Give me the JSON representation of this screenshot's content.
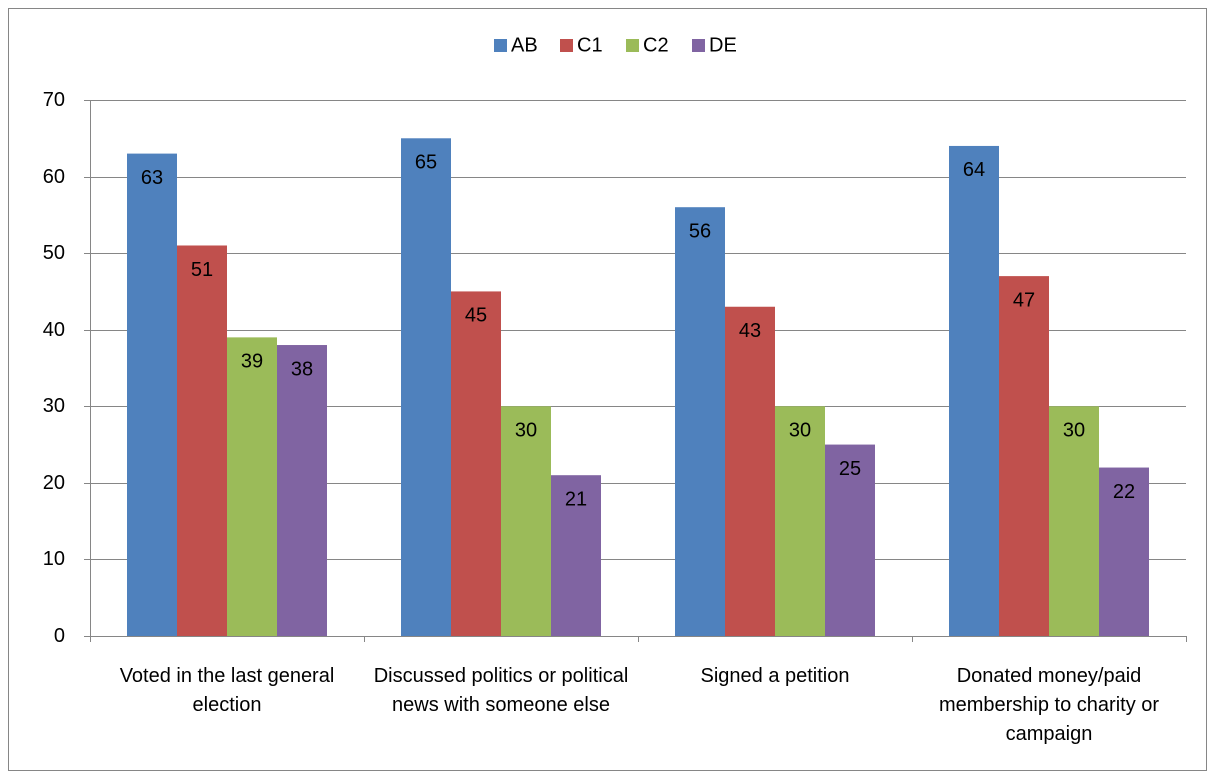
{
  "chart_data": {
    "type": "bar",
    "categories": [
      "Voted in the last general election",
      "Discussed politics or political news with someone else",
      "Signed a petition",
      "Donated money/paid membership to charity or campaign"
    ],
    "series": [
      {
        "name": "AB",
        "color": "#4f81bd",
        "values": [
          63,
          65,
          56,
          64
        ]
      },
      {
        "name": "C1",
        "color": "#c0504d",
        "values": [
          51,
          45,
          43,
          47
        ]
      },
      {
        "name": "C2",
        "color": "#9bbb59",
        "values": [
          39,
          30,
          30,
          30
        ]
      },
      {
        "name": "DE",
        "color": "#8064a2",
        "values": [
          38,
          21,
          25,
          22
        ]
      }
    ],
    "ylim": [
      0,
      70
    ],
    "yticks": [
      0,
      10,
      20,
      30,
      40,
      50,
      60,
      70
    ],
    "grid": true,
    "legend": "top"
  }
}
